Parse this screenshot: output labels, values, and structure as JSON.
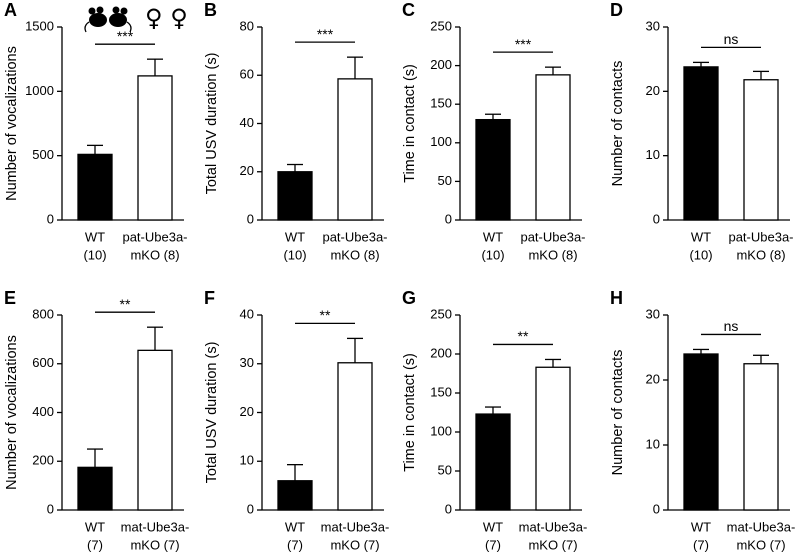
{
  "chart_data": [
    {
      "type": "bar",
      "panel": "A",
      "ylabel": "Number of vocalizations",
      "annotation": "♀ ♀",
      "categories": [
        [
          "WT",
          "(10)"
        ],
        [
          "pat-Ube3a-",
          "mKO (8)"
        ]
      ],
      "values": [
        510,
        1120
      ],
      "errors": [
        70,
        130
      ],
      "colors": [
        "#000000",
        "#ffffff"
      ],
      "ylim": [
        0,
        1500
      ],
      "yticks": [
        0,
        500,
        1000,
        1500
      ],
      "significance": "***"
    },
    {
      "type": "bar",
      "panel": "B",
      "ylabel": "Total USV duration (s)",
      "categories": [
        [
          "WT",
          "(10)"
        ],
        [
          "pat-Ube3a-",
          "mKO (8)"
        ]
      ],
      "values": [
        20,
        58.5
      ],
      "errors": [
        3,
        9
      ],
      "colors": [
        "#000000",
        "#ffffff"
      ],
      "ylim": [
        0,
        80
      ],
      "yticks": [
        0,
        20,
        40,
        60,
        80
      ],
      "significance": "***"
    },
    {
      "type": "bar",
      "panel": "C",
      "ylabel": "Time in contact (s)",
      "categories": [
        [
          "WT",
          "(10)"
        ],
        [
          "pat-Ube3a-",
          "mKO (8)"
        ]
      ],
      "values": [
        130,
        188
      ],
      "errors": [
        7,
        10
      ],
      "colors": [
        "#000000",
        "#ffffff"
      ],
      "ylim": [
        0,
        250
      ],
      "yticks": [
        0,
        50,
        100,
        150,
        200,
        250
      ],
      "significance": "***"
    },
    {
      "type": "bar",
      "panel": "D",
      "ylabel": "Number of contacts",
      "categories": [
        [
          "WT",
          "(10)"
        ],
        [
          "pat-Ube3a-",
          "mKO (8)"
        ]
      ],
      "values": [
        23.8,
        21.8
      ],
      "errors": [
        0.7,
        1.3
      ],
      "colors": [
        "#000000",
        "#ffffff"
      ],
      "ylim": [
        0,
        30
      ],
      "yticks": [
        0,
        10,
        20,
        30
      ],
      "significance": "ns"
    },
    {
      "type": "bar",
      "panel": "E",
      "ylabel": "Number of vocalizations",
      "categories": [
        [
          "WT",
          "(7)"
        ],
        [
          "mat-Ube3a-",
          "mKO (7)"
        ]
      ],
      "values": [
        175,
        655
      ],
      "errors": [
        75,
        95
      ],
      "colors": [
        "#000000",
        "#ffffff"
      ],
      "ylim": [
        0,
        800
      ],
      "yticks": [
        0,
        200,
        400,
        600,
        800
      ],
      "significance": "**"
    },
    {
      "type": "bar",
      "panel": "F",
      "ylabel": "Total USV duration (s)",
      "categories": [
        [
          "WT",
          "(7)"
        ],
        [
          "mat-Ube3a-",
          "mKO (7)"
        ]
      ],
      "values": [
        6,
        30.2
      ],
      "errors": [
        3.3,
        5
      ],
      "colors": [
        "#000000",
        "#ffffff"
      ],
      "ylim": [
        0,
        40
      ],
      "yticks": [
        0,
        10,
        20,
        30,
        40
      ],
      "significance": "**"
    },
    {
      "type": "bar",
      "panel": "G",
      "ylabel": "Time in contact (s)",
      "categories": [
        [
          "WT",
          "(7)"
        ],
        [
          "mat-Ube3a-",
          "mKO (7)"
        ]
      ],
      "values": [
        123,
        183
      ],
      "errors": [
        9,
        10
      ],
      "colors": [
        "#000000",
        "#ffffff"
      ],
      "ylim": [
        0,
        250
      ],
      "yticks": [
        0,
        50,
        100,
        150,
        200,
        250
      ],
      "significance": "**"
    },
    {
      "type": "bar",
      "panel": "H",
      "ylabel": "Number of contacts",
      "categories": [
        [
          "WT",
          "(7)"
        ],
        [
          "mat-Ube3a-",
          "mKO (7)"
        ]
      ],
      "values": [
        24,
        22.5
      ],
      "errors": [
        0.7,
        1.3
      ],
      "colors": [
        "#000000",
        "#ffffff"
      ],
      "ylim": [
        0,
        30
      ],
      "yticks": [
        0,
        10,
        20,
        30
      ],
      "significance": "ns"
    }
  ]
}
